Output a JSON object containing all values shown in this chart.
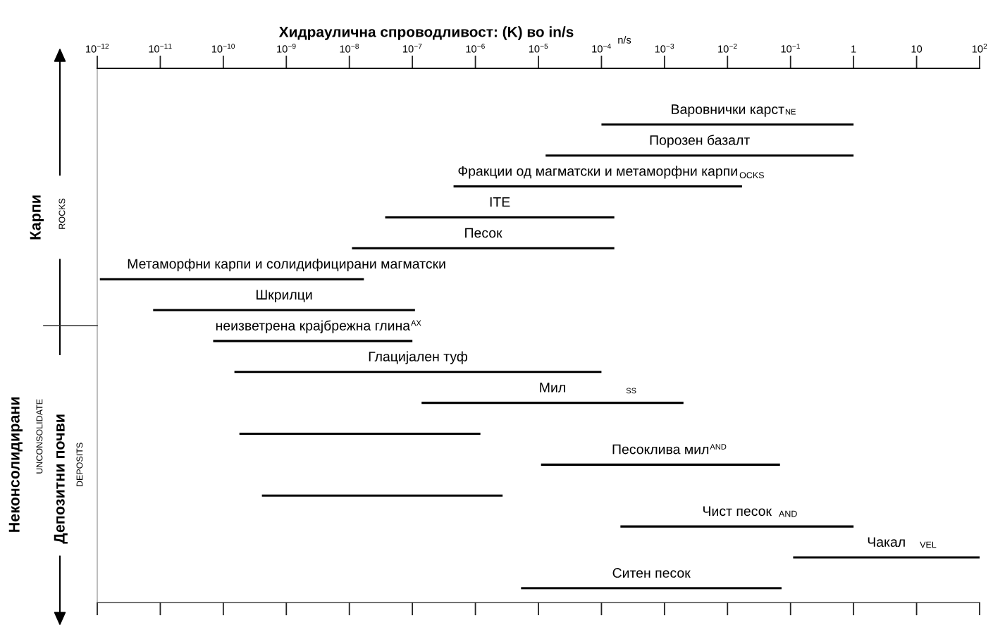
{
  "chart_data": {
    "type": "bar",
    "orientation": "horizontal",
    "title": "Хидраулична спроводливост: (K) во in/s",
    "categories": [
      "Варовнички карст",
      "Порозен базалт",
      "Фракции од магматски и метаморфни карпи",
      "ITE",
      "Песок",
      "Метаморфни карпи и солидифицирани магматски",
      "Шкрилци",
      "неизветрена крајбрежна глина",
      "Глацијален туф",
      "Мил",
      null,
      "Песоклива мил",
      null,
      "Чист песок",
      "Чакал",
      "Ситен песок"
    ],
    "base": [
      0.0001,
      1.3e-05,
      4.5e-07,
      3.7e-08,
      1.1e-08,
      1.1e-12,
      7.7e-12,
      6.9e-11,
      1.5e-10,
      1.4e-07,
      1.8e-10,
      1.1e-05,
      4.1e-10,
      0.0002,
      0.11,
      5.3e-06
    ],
    "values": [
      1,
      1,
      0.017,
      0.00016,
      0.00016,
      1.7e-08,
      1.1e-07,
      1e-07,
      0.0001,
      0.002,
      1.2e-06,
      0.068,
      2.7e-06,
      1,
      99.89,
      0.072
    ],
    "color": "#000000",
    "log": "x",
    "xlim": [
      1e-12,
      100
    ],
    "xticks": [
      {
        "value": 1e-12,
        "label": "10$^{−12}$"
      },
      {
        "value": 1e-11,
        "label": "10$^{−11}$"
      },
      {
        "value": 1e-10,
        "label": "10$^{−10}$"
      },
      {
        "value": 1e-09,
        "label": "10$^{−9}$"
      },
      {
        "value": 1e-08,
        "label": "10$^{−8}$"
      },
      {
        "value": 1e-07,
        "label": "10$^{−7}$"
      },
      {
        "value": 1e-06,
        "label": "10$^{−6}$"
      },
      {
        "value": 1e-05,
        "label": "10$^{−5}$"
      },
      {
        "value": 0.0001,
        "label": "10$^{−4}$"
      },
      {
        "value": 0.001,
        "label": "10$^{−3}$"
      },
      {
        "value": 0.01,
        "label": "10$^{−2}$"
      },
      {
        "value": 0.1,
        "label": "10$^{−1}$"
      },
      1,
      10,
      {
        "value": 100,
        "label": "10$^{2}$"
      }
    ],
    "annotations": [
      "Карпи",
      "ROCKS",
      "Неконсолидирани",
      "UNCONSOLIDATE",
      "Депозитни почви",
      "DEPOSITS",
      "n/s",
      "NE",
      "OCKS",
      "AX",
      "SS",
      "AND",
      "AND",
      "VEL"
    ]
  }
}
